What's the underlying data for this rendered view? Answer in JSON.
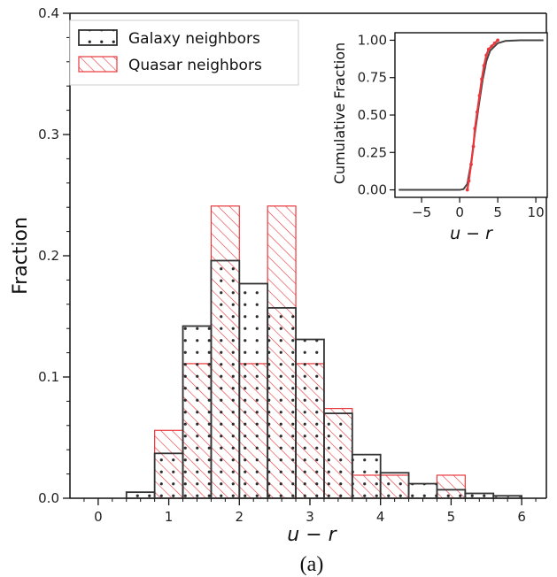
{
  "chart_data": [
    {
      "type": "bar",
      "subtype": "step-histogram",
      "xlabel": "u − r",
      "ylabel": "Fraction",
      "xlim": [
        -0.4,
        6.35
      ],
      "ylim": [
        0.0,
        0.4
      ],
      "xticks": [
        "0",
        "1",
        "2",
        "3",
        "4",
        "5",
        "6"
      ],
      "yticks": [
        "0.0",
        "0.1",
        "0.2",
        "0.3",
        "0.4"
      ],
      "bin_edges": [
        0.4,
        0.8,
        1.2,
        1.6,
        2.0,
        2.4,
        2.8,
        3.2,
        3.6,
        4.0,
        4.4,
        4.8,
        5.2,
        5.6,
        6.0
      ],
      "legend_position": "top-left",
      "series": [
        {
          "name": "Galaxy neighbors",
          "style": "dotted-black",
          "color": "#333333",
          "values": [
            0.005,
            0.037,
            0.142,
            0.196,
            0.177,
            0.157,
            0.131,
            0.07,
            0.036,
            0.021,
            0.012,
            0.007,
            0.004,
            0.002
          ]
        },
        {
          "name": "Quasar neighbors",
          "style": "hatched-red",
          "color": "#e8383d",
          "values": [
            0.0,
            0.056,
            0.111,
            0.241,
            0.111,
            0.241,
            0.111,
            0.074,
            0.019,
            0.019,
            0.0,
            0.019,
            0.0,
            0.0
          ]
        }
      ]
    },
    {
      "type": "line",
      "panel": "inset",
      "xlabel": "u − r",
      "ylabel": "Cumulative Fraction",
      "xlim": [
        -8.5,
        11.5
      ],
      "ylim": [
        -0.05,
        1.05
      ],
      "xticks": [
        "−5",
        "0",
        "5",
        "10"
      ],
      "yticks": [
        "0.00",
        "0.25",
        "0.50",
        "0.75",
        "1.00"
      ],
      "series": [
        {
          "name": "Galaxy neighbors",
          "color": "#444444",
          "x": [
            -8.0,
            0.0,
            0.5,
            1.0,
            1.5,
            2.0,
            2.5,
            3.0,
            3.5,
            4.0,
            5.0,
            6.0,
            8.0,
            11.0
          ],
          "y": [
            0.0,
            0.0,
            0.005,
            0.04,
            0.18,
            0.38,
            0.56,
            0.73,
            0.86,
            0.93,
            0.98,
            0.995,
            1.0,
            1.0
          ]
        },
        {
          "name": "Quasar neighbors",
          "color": "#e8383d",
          "x": [
            1.0,
            1.2,
            1.5,
            1.8,
            2.0,
            2.3,
            2.6,
            2.9,
            3.2,
            3.5,
            3.8,
            4.2,
            4.6,
            5.0
          ],
          "y": [
            0.0,
            0.06,
            0.17,
            0.29,
            0.41,
            0.52,
            0.63,
            0.74,
            0.83,
            0.9,
            0.94,
            0.96,
            0.98,
            1.0
          ]
        }
      ]
    }
  ],
  "caption": "(a)"
}
